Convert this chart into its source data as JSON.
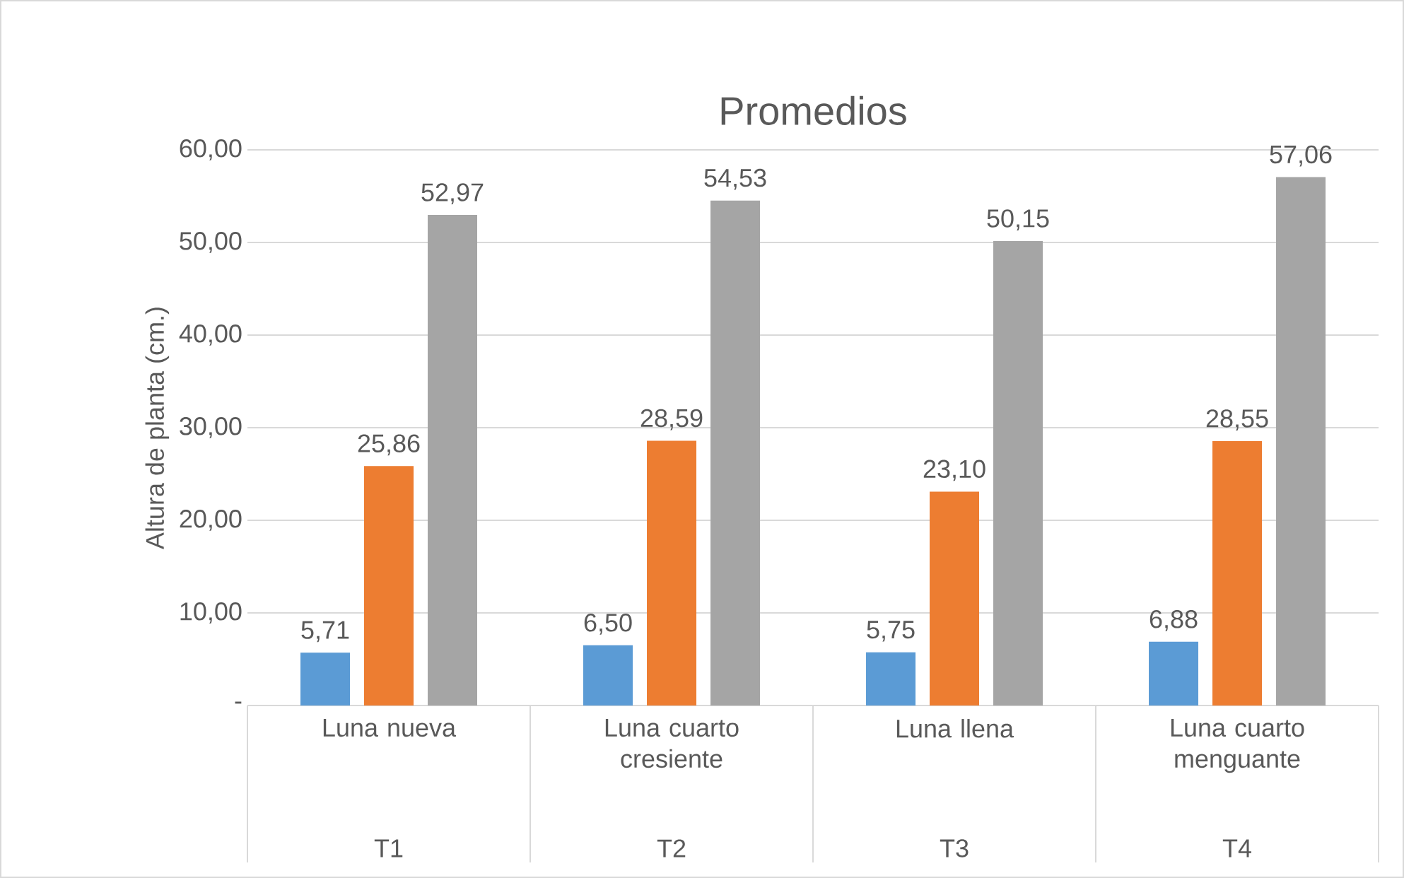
{
  "chart_data": {
    "type": "bar",
    "title": "Promedios",
    "ylabel": "Altura de planta (cm.)",
    "categories": [
      "Luna nueva",
      "Luna cuarto cresiente",
      "Luna llena",
      "Luna cuarto menguante"
    ],
    "annotations": [
      "T1",
      "T2",
      "T3",
      "T4"
    ],
    "series": [
      {
        "color": "#5b9bd5",
        "values": [
          5.71,
          6.5,
          5.75,
          6.88
        ],
        "value_labels": [
          "5,71",
          "6,50",
          "5,75",
          "6,88"
        ]
      },
      {
        "color": "#ed7d31",
        "values": [
          25.86,
          28.59,
          23.1,
          28.55
        ],
        "value_labels": [
          "25,86",
          "28,59",
          "23,10",
          "28,55"
        ]
      },
      {
        "color": "#a5a5a5",
        "values": [
          52.97,
          54.53,
          50.15,
          57.06
        ],
        "value_labels": [
          "52,97",
          "54,53",
          "50,15",
          "57,06"
        ]
      }
    ],
    "ylim": [
      0,
      60
    ],
    "yticks": [
      {
        "value": 0,
        "label": "-"
      },
      {
        "value": 10,
        "label": "10,00"
      },
      {
        "value": 20,
        "label": "20,00"
      },
      {
        "value": 30,
        "label": "30,00"
      },
      {
        "value": 40,
        "label": "40,00"
      },
      {
        "value": 50,
        "label": "50,00"
      },
      {
        "value": 60,
        "label": "60,00"
      }
    ],
    "grid": "y"
  }
}
